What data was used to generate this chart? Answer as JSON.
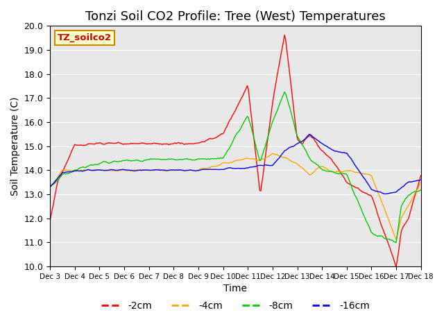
{
  "title": "Tonzi Soil CO2 Profile: Tree (West) Temperatures",
  "xlabel": "Time",
  "ylabel": "Soil Temperature (C)",
  "ylim": [
    10.0,
    20.0
  ],
  "yticks": [
    10.0,
    11.0,
    12.0,
    13.0,
    14.0,
    15.0,
    16.0,
    17.0,
    18.0,
    19.0,
    20.0
  ],
  "xtick_labels": [
    "Dec 3",
    "Dec 4",
    "Dec 5",
    "Dec 6",
    "Dec 7",
    "Dec 8",
    "Dec 9",
    "Dec 10",
    "Dec 11",
    "Dec 12",
    "Dec 13",
    "Dec 14",
    "Dec 15",
    "Dec 16",
    "Dec 17",
    "Dec 18"
  ],
  "line_colors": [
    "#ff0000",
    "#ffa500",
    "#00cc00",
    "#0000ff"
  ],
  "line_labels": [
    "-2cm",
    "-4cm",
    "-8cm",
    "-16cm"
  ],
  "legend_label": "TZ_soilco2",
  "legend_bg": "#ffffcc",
  "legend_border": "#cc8800",
  "bg_color": "#e8e8e8",
  "n_points": 360,
  "title_fontsize": 13,
  "knots2": [
    0,
    0.3,
    1.0,
    2.0,
    4.0,
    6.0,
    6.5,
    7.0,
    8.0,
    8.5,
    9.0,
    9.5,
    10.0,
    10.2,
    10.5,
    11.0,
    11.5,
    12.0,
    13.0,
    14.0,
    14.2,
    14.5,
    15.0
  ],
  "vals2": [
    11.9,
    13.5,
    15.05,
    15.1,
    15.1,
    15.1,
    15.3,
    15.5,
    17.5,
    13.0,
    16.8,
    19.7,
    15.3,
    15.1,
    15.5,
    14.8,
    14.3,
    13.5,
    12.9,
    10.0,
    11.5,
    12.0,
    13.8
  ],
  "knots4": [
    0,
    0.5,
    1.5,
    6.0,
    8.0,
    8.5,
    9.0,
    9.5,
    10.0,
    10.5,
    11.0,
    11.5,
    12.0,
    13.0,
    14.0,
    14.2,
    14.5,
    15.0
  ],
  "vals4": [
    13.3,
    14.0,
    14.0,
    14.0,
    14.5,
    14.4,
    14.7,
    14.5,
    14.3,
    13.8,
    14.2,
    13.9,
    14.0,
    13.8,
    11.1,
    12.0,
    12.5,
    13.5
  ],
  "knots8": [
    0,
    0.5,
    1.5,
    2.0,
    4.0,
    6.0,
    7.0,
    8.0,
    8.5,
    9.0,
    9.5,
    10.0,
    10.2,
    10.5,
    11.0,
    11.5,
    12.0,
    13.0,
    14.0,
    14.2,
    14.5,
    15.0
  ],
  "vals8": [
    13.3,
    13.8,
    14.2,
    14.3,
    14.45,
    14.45,
    14.5,
    16.3,
    14.3,
    16.0,
    17.3,
    15.4,
    15.0,
    14.5,
    14.0,
    13.9,
    13.8,
    11.4,
    11.0,
    12.5,
    13.0,
    13.2
  ],
  "knots16": [
    0,
    0.5,
    1.5,
    6.0,
    8.0,
    8.5,
    9.0,
    9.5,
    10.0,
    10.2,
    10.5,
    11.0,
    11.5,
    12.0,
    13.0,
    13.5,
    14.0,
    14.5,
    15.0
  ],
  "vals16": [
    13.3,
    13.9,
    14.0,
    14.0,
    14.1,
    14.2,
    14.2,
    14.8,
    15.1,
    15.2,
    15.5,
    15.1,
    14.8,
    14.7,
    13.2,
    13.0,
    13.1,
    13.5,
    13.6
  ]
}
